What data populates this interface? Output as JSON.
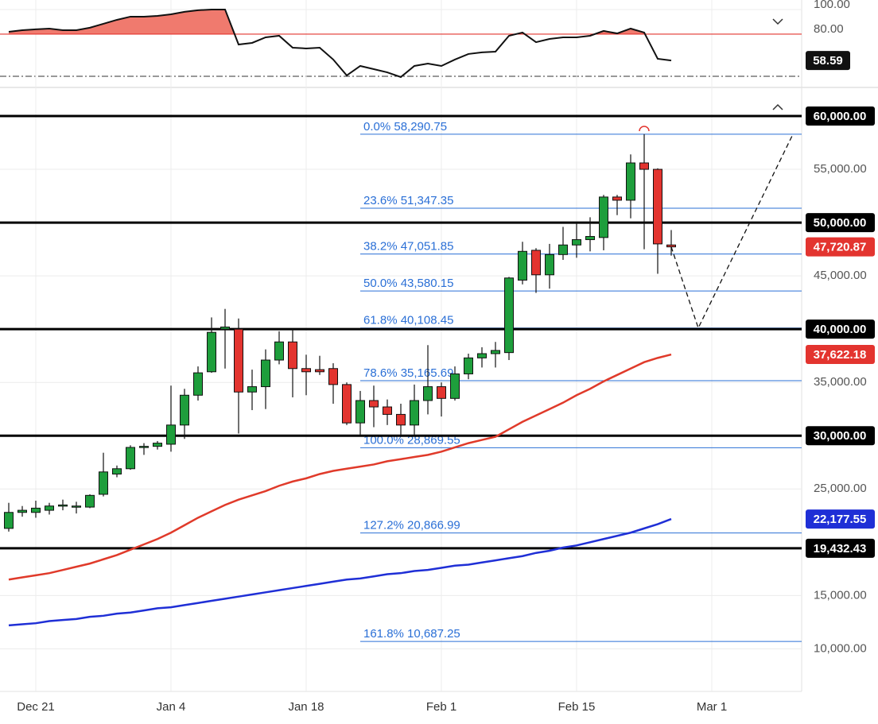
{
  "chart_data": {
    "type": "candlestick",
    "categories": [
      null,
      null,
      "Dec 21",
      null,
      null,
      null,
      null,
      null,
      null,
      null,
      null,
      null,
      "Jan 4",
      null,
      null,
      null,
      null,
      null,
      null,
      null,
      null,
      null,
      "Jan 18",
      null,
      null,
      null,
      null,
      null,
      null,
      null,
      null,
      null,
      "Feb 1",
      null,
      null,
      null,
      null,
      null,
      null,
      null,
      null,
      null,
      "Feb 15",
      null,
      null,
      null,
      null,
      null,
      null,
      null,
      null,
      null,
      "Mar 1",
      null,
      null,
      null,
      null,
      null,
      null
    ],
    "open": [
      21300,
      22800,
      22800,
      23000,
      23400,
      23300,
      23300,
      24500,
      26400,
      26900,
      28900,
      29000,
      29200,
      31000,
      33800,
      36000,
      40000,
      40000,
      34100,
      34600,
      37100,
      38800,
      36300,
      36200,
      36300,
      34800,
      31200,
      33300,
      32700,
      32000,
      31000,
      33300,
      34600,
      33500,
      35800,
      37300,
      37700,
      37800,
      44600,
      47400,
      45100,
      47000,
      47900,
      48400,
      48600,
      52400,
      52100,
      55600,
      55000,
      47900,
      null,
      null,
      null,
      null,
      null,
      null,
      null,
      null,
      null
    ],
    "high": [
      23700,
      23400,
      23900,
      23700,
      24000,
      23800,
      24500,
      28400,
      27200,
      29100,
      29300,
      29500,
      34700,
      34400,
      36500,
      41100,
      41900,
      41000,
      36200,
      38100,
      39800,
      40000,
      37600,
      37500,
      36800,
      35000,
      34200,
      34700,
      33400,
      33000,
      34800,
      38500,
      35000,
      36500,
      37700,
      38300,
      38800,
      44900,
      48200,
      47600,
      48000,
      49600,
      50000,
      50500,
      52600,
      52600,
      56400,
      58290.75,
      55100,
      49300,
      null,
      null,
      null,
      null,
      null,
      null,
      null,
      null,
      null
    ],
    "low": [
      21000,
      22400,
      22300,
      22600,
      23000,
      22700,
      23200,
      24300,
      26100,
      26800,
      28200,
      28700,
      28500,
      29700,
      33300,
      35900,
      36300,
      30200,
      32400,
      32500,
      36700,
      33600,
      33800,
      35700,
      33000,
      31000,
      30100,
      30800,
      31000,
      30000,
      30100,
      32000,
      31800,
      33300,
      35300,
      36400,
      36400,
      37100,
      44200,
      43400,
      43800,
      46500,
      46700,
      47300,
      47400,
      50700,
      50400,
      47500,
      45200,
      46900,
      null,
      null,
      null,
      null,
      null,
      null,
      null,
      null,
      null
    ],
    "close": [
      22800,
      23000,
      23200,
      23400,
      23500,
      23400,
      24400,
      26600,
      26900,
      28900,
      29000,
      29300,
      31000,
      33800,
      35900,
      39700,
      40200,
      34100,
      34600,
      37100,
      38800,
      36300,
      36000,
      36000,
      34800,
      31200,
      33300,
      32700,
      32000,
      31000,
      33300,
      34600,
      33500,
      35800,
      37300,
      37700,
      38000,
      44800,
      47300,
      45100,
      47000,
      47900,
      48400,
      48700,
      52400,
      52100,
      55600,
      55000,
      48000,
      47720.87,
      null,
      null,
      null,
      null,
      null,
      null,
      null,
      null,
      null
    ],
    "up_color": "#1e9e3c",
    "down_color": "#e3342f",
    "moving_averages": [
      {
        "color": "#e03a2a",
        "values": [
          16500,
          16700,
          16900,
          17100,
          17400,
          17700,
          18000,
          18400,
          18800,
          19300,
          19800,
          20300,
          20900,
          21600,
          22300,
          22900,
          23500,
          24000,
          24400,
          24800,
          25300,
          25700,
          26000,
          26400,
          26700,
          26900,
          27100,
          27300,
          27600,
          27800,
          28000,
          28200,
          28500,
          28900,
          29300,
          29600,
          29900,
          30600,
          31300,
          31900,
          32500,
          33100,
          33800,
          34400,
          35100,
          35700,
          36300,
          36900,
          37300,
          37622.18,
          null,
          null,
          null,
          null,
          null,
          null,
          null,
          null,
          null
        ]
      },
      {
        "color": "#1f2fd6",
        "values": [
          12200,
          12300,
          12400,
          12600,
          12700,
          12800,
          13000,
          13100,
          13300,
          13400,
          13600,
          13800,
          13900,
          14100,
          14300,
          14500,
          14700,
          14900,
          15100,
          15300,
          15500,
          15700,
          15900,
          16100,
          16300,
          16500,
          16600,
          16800,
          17000,
          17100,
          17300,
          17400,
          17600,
          17800,
          17900,
          18100,
          18300,
          18500,
          18700,
          19000,
          19200,
          19500,
          19700,
          20000,
          20300,
          20600,
          20900,
          21300,
          21700,
          22177.55,
          null,
          null,
          null,
          null,
          null,
          null,
          null,
          null,
          null
        ]
      }
    ],
    "ylim": [
      6000,
      62537
    ],
    "yticks": [
      {
        "value": 55000,
        "label": "55,000.00"
      },
      {
        "value": 45000,
        "label": "45,000.00"
      },
      {
        "value": 35000,
        "label": "35,000.00"
      },
      {
        "value": 25000,
        "label": "25,000.00"
      },
      {
        "value": 15000,
        "label": "15,000.00"
      },
      {
        "value": 10000,
        "label": "10,000.00"
      }
    ],
    "grid": true,
    "levels": [
      {
        "value": 60000,
        "label": "60,000.00"
      },
      {
        "value": 50000,
        "label": "50,000.00"
      },
      {
        "value": 40000,
        "label": "40,000.00"
      },
      {
        "value": 30000,
        "label": "30,000.00"
      },
      {
        "value": 19432.43,
        "label": "19,432.43"
      }
    ],
    "badges": [
      {
        "value": 47720.87,
        "label": "47,720.87",
        "color": "#e3342f"
      },
      {
        "value": 37622.18,
        "label": "37,622.18",
        "color": "#e3342f"
      },
      {
        "value": 22177.55,
        "label": "22,177.55",
        "color": "#1f2fd6"
      }
    ],
    "fib_color": "#2a6fd6",
    "fib": [
      {
        "value": 58290.75,
        "label": "0.0% 58,290.75"
      },
      {
        "value": 51347.35,
        "label": "23.6% 51,347.35"
      },
      {
        "value": 47051.85,
        "label": "38.2% 47,051.85"
      },
      {
        "value": 43580.15,
        "label": "50.0% 43,580.15"
      },
      {
        "value": 40108.45,
        "label": "61.8% 40,108.45"
      },
      {
        "value": 35165.69,
        "label": "78.6% 35,165.69"
      },
      {
        "value": 28869.55,
        "label": "100.0% 28,869.55"
      },
      {
        "value": 20866.99,
        "label": "127.2% 20,866.99"
      },
      {
        "value": 10687.25,
        "label": "161.8% 10,687.25"
      }
    ],
    "projection": {
      "x": [
        49,
        51,
        58
      ],
      "values": [
        47720.87,
        40108.45,
        58290.75
      ]
    },
    "oscillator": {
      "values": [
        81.9,
        83.2,
        83.9,
        84.5,
        83.2,
        83.2,
        85.2,
        88.4,
        91.6,
        94.2,
        94.2,
        94.8,
        96.1,
        98.1,
        99.4,
        100,
        100,
        71.6,
        72.9,
        77.4,
        78.7,
        69,
        68.4,
        69,
        59.4,
        46.5,
        54.2,
        51.6,
        49,
        45.2,
        54.2,
        56.1,
        54.2,
        59.4,
        63.9,
        65.2,
        65.8,
        78.7,
        81.3,
        73.5,
        76.1,
        77.4,
        77.4,
        78.7,
        82.6,
        80.6,
        84.5,
        81.3,
        60,
        58.59,
        null,
        null,
        null,
        null,
        null,
        null,
        null,
        null,
        null
      ],
      "color": "#111111",
      "fill": "#f07a6e",
      "threshold_color": "#e3342f",
      "ylim": [
        40,
        107.7
      ],
      "yticks": [
        {
          "value": 100,
          "label": "100.00"
        },
        {
          "value": 80,
          "label": "80.00"
        }
      ],
      "threshold": 80,
      "badge": {
        "value": 58.59,
        "label": "58.59"
      }
    }
  }
}
